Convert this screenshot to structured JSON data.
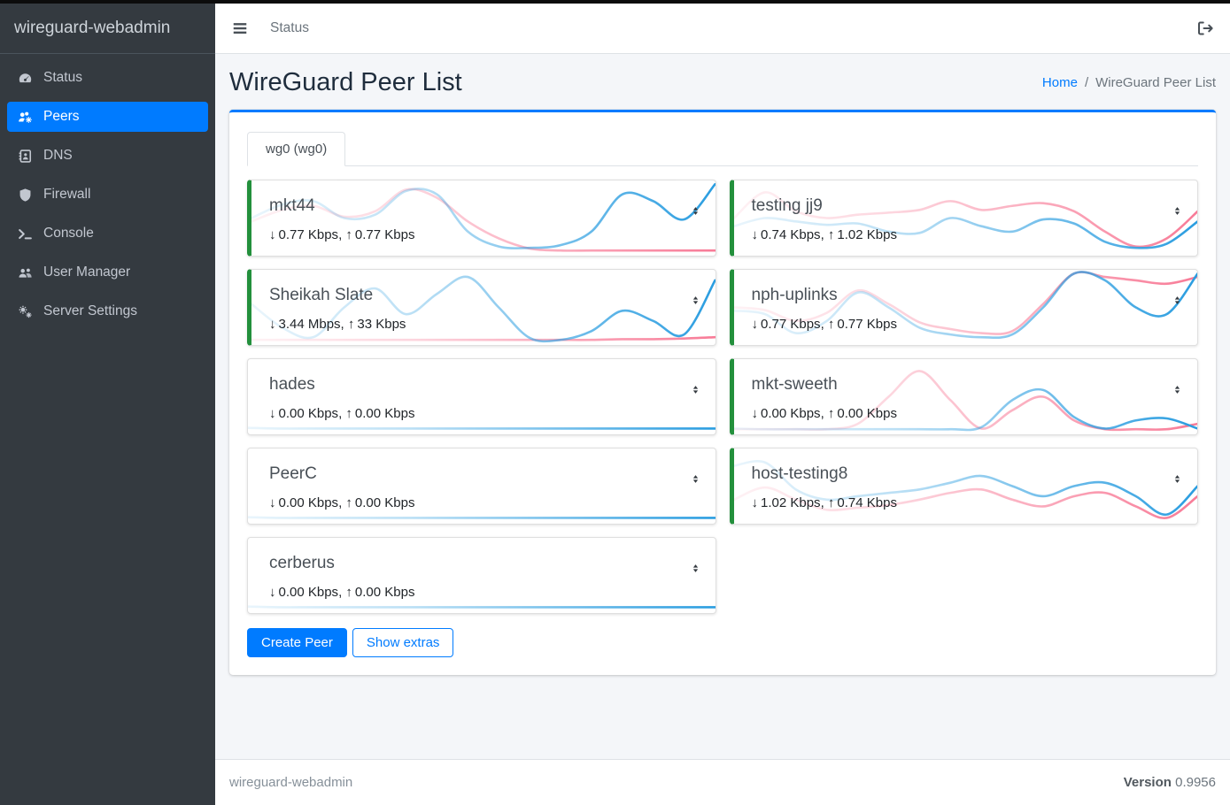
{
  "colors": {
    "accent": "#007bff",
    "online_green": "#23903c",
    "chart_blue": "#2a9de0",
    "chart_pink": "#f87b97"
  },
  "sidebar": {
    "brand": "wireguard-webadmin",
    "items": [
      {
        "label": "Status",
        "icon": "tachometer-icon",
        "active": false
      },
      {
        "label": "Peers",
        "icon": "users-cog-icon",
        "active": true
      },
      {
        "label": "DNS",
        "icon": "address-book-icon",
        "active": false
      },
      {
        "label": "Firewall",
        "icon": "shield-icon",
        "active": false
      },
      {
        "label": "Console",
        "icon": "terminal-icon",
        "active": false
      },
      {
        "label": "User Manager",
        "icon": "users-icon",
        "active": false
      },
      {
        "label": "Server Settings",
        "icon": "cogs-icon",
        "active": false
      }
    ]
  },
  "topbar": {
    "nav_link": "Status"
  },
  "page": {
    "title": "WireGuard Peer List",
    "breadcrumb_home": "Home",
    "breadcrumb_sep": "/",
    "breadcrumb_current": "WireGuard Peer List"
  },
  "panel": {
    "tab_label": "wg0 (wg0)",
    "create_button": "Create Peer",
    "extras_button": "Show extras"
  },
  "transfer": {
    "down_arrow": "↓",
    "up_arrow": "↑",
    "separator": ", "
  },
  "peers": {
    "left": [
      {
        "name": "mkt44",
        "down": "0.77 Kbps",
        "up": "0.77 Kbps",
        "online": true,
        "spark": {
          "blue": [
            0.5,
            0.7,
            0.75,
            0.5,
            0.55,
            0.9,
            0.85,
            0.3,
            0.08,
            0.06,
            0.1,
            0.3,
            0.85,
            0.75,
            0.48,
            1.0
          ],
          "pink": [
            0.45,
            0.62,
            0.68,
            0.52,
            0.6,
            0.92,
            0.8,
            0.45,
            0.2,
            0.05,
            0.02,
            0.02,
            0.02,
            0.02,
            0.02,
            0.02
          ]
        }
      },
      {
        "name": "Sheikah Slate",
        "down": "3.44 Mbps",
        "up": "33 Kbps",
        "online": true,
        "spark": {
          "blue": [
            0.55,
            0.2,
            0.06,
            0.5,
            0.78,
            0.4,
            0.7,
            0.95,
            0.5,
            0.05,
            0.02,
            0.15,
            0.45,
            0.3,
            0.1,
            0.9
          ],
          "pink": [
            0.02,
            0.02,
            0.02,
            0.02,
            0.02,
            0.02,
            0.02,
            0.02,
            0.02,
            0.02,
            0.02,
            0.02,
            0.03,
            0.03,
            0.04,
            0.06
          ]
        }
      },
      {
        "name": "hades",
        "down": "0.00 Kbps",
        "up": "0.00 Kbps",
        "online": false,
        "spark": {
          "blue": [
            0.04,
            0.03,
            0.03,
            0.03,
            0.03,
            0.03,
            0.03,
            0.03,
            0.03,
            0.03,
            0.03,
            0.03,
            0.03,
            0.03,
            0.03,
            0.03
          ],
          "pink": [
            0.02,
            0.02,
            0.02,
            0.02,
            0.02,
            0.02,
            0.02,
            0.02,
            0.02,
            0.02,
            0.02,
            0.02,
            0.02,
            0.02,
            0.02,
            0.02
          ]
        }
      },
      {
        "name": "PeerC",
        "down": "0.00 Kbps",
        "up": "0.00 Kbps",
        "online": false,
        "spark": {
          "blue": [
            0.04,
            0.03,
            0.03,
            0.03,
            0.03,
            0.03,
            0.03,
            0.03,
            0.03,
            0.03,
            0.03,
            0.03,
            0.03,
            0.03,
            0.03,
            0.03
          ],
          "pink": [
            0.02,
            0.02,
            0.02,
            0.02,
            0.02,
            0.02,
            0.02,
            0.02,
            0.02,
            0.02,
            0.02,
            0.02,
            0.02,
            0.02,
            0.02,
            0.02
          ]
        }
      },
      {
        "name": "cerberus",
        "down": "0.00 Kbps",
        "up": "0.00 Kbps",
        "online": false,
        "spark": {
          "blue": [
            0.04,
            0.03,
            0.03,
            0.03,
            0.03,
            0.03,
            0.03,
            0.03,
            0.03,
            0.03,
            0.03,
            0.03,
            0.03,
            0.03,
            0.03,
            0.03
          ],
          "pink": [
            0.02,
            0.02,
            0.02,
            0.02,
            0.02,
            0.02,
            0.02,
            0.02,
            0.02,
            0.02,
            0.02,
            0.02,
            0.02,
            0.02,
            0.02,
            0.02
          ]
        }
      }
    ],
    "right": [
      {
        "name": "testing jj9",
        "down": "0.74 Kbps",
        "up": "1.02 Kbps",
        "online": true,
        "spark": {
          "blue": [
            0.38,
            0.5,
            0.45,
            0.4,
            0.42,
            0.3,
            0.28,
            0.5,
            0.38,
            0.3,
            0.48,
            0.42,
            0.15,
            0.06,
            0.12,
            0.45
          ],
          "pink": [
            0.5,
            0.88,
            0.6,
            0.5,
            0.55,
            0.58,
            0.62,
            0.75,
            0.62,
            0.68,
            0.72,
            0.6,
            0.3,
            0.08,
            0.2,
            0.6
          ]
        }
      },
      {
        "name": "nph-uplinks",
        "down": "0.77 Kbps",
        "up": "0.77 Kbps",
        "online": true,
        "spark": {
          "blue": [
            0.45,
            0.4,
            0.12,
            0.3,
            0.72,
            0.5,
            0.2,
            0.1,
            0.06,
            0.1,
            0.5,
            1.0,
            0.9,
            0.5,
            0.4,
            1.0
          ],
          "pink": [
            0.5,
            0.46,
            0.3,
            0.42,
            0.75,
            0.55,
            0.28,
            0.18,
            0.12,
            0.15,
            0.55,
            1.0,
            0.95,
            0.9,
            0.85,
            0.95
          ]
        }
      },
      {
        "name": "mkt-sweeth",
        "down": "0.00 Kbps",
        "up": "0.00 Kbps",
        "online": true,
        "spark": {
          "blue": [
            0.03,
            0.02,
            0.02,
            0.02,
            0.02,
            0.02,
            0.02,
            0.02,
            0.05,
            0.45,
            0.6,
            0.2,
            0.03,
            0.15,
            0.18,
            0.03
          ],
          "pink": [
            0.02,
            0.02,
            0.02,
            0.02,
            0.1,
            0.5,
            0.88,
            0.45,
            0.03,
            0.3,
            0.5,
            0.15,
            0.02,
            0.02,
            0.02,
            0.1
          ]
        }
      },
      {
        "name": "host-testing8",
        "down": "1.02 Kbps",
        "up": "0.74 Kbps",
        "online": true,
        "spark": {
          "blue": [
            0.8,
            0.85,
            0.45,
            0.3,
            0.35,
            0.4,
            0.45,
            0.55,
            0.65,
            0.5,
            0.35,
            0.5,
            0.55,
            0.35,
            0.08,
            0.5
          ],
          "pink": [
            0.3,
            0.48,
            0.3,
            0.15,
            0.18,
            0.22,
            0.3,
            0.4,
            0.45,
            0.3,
            0.2,
            0.35,
            0.4,
            0.2,
            0.03,
            0.35
          ]
        }
      }
    ]
  },
  "footer": {
    "app_name": "wireguard-webadmin",
    "version_label": "Version",
    "version_value": "0.9956"
  }
}
